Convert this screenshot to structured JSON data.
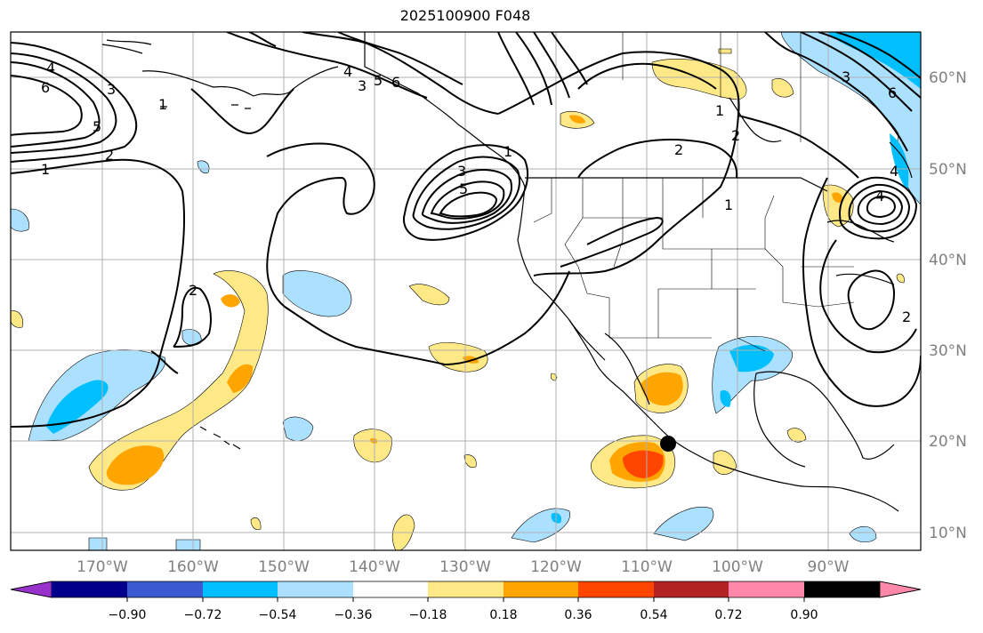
{
  "title": "2025100900 F048",
  "lon_ticks": [
    "170°W",
    "160°W",
    "150°W",
    "140°W",
    "130°W",
    "120°W",
    "110°W",
    "100°W",
    "90°W"
  ],
  "lat_ticks": [
    "60°N",
    "50°N",
    "40°N",
    "30°N",
    "20°N",
    "10°N"
  ],
  "colorbar": {
    "colors": [
      "#9932cc",
      "#00008b",
      "#3a5bcf",
      "#00bfff",
      "#abe0ff",
      "#ffffff",
      "#ffe987",
      "#ffa500",
      "#ff4500",
      "#b22222",
      "#ff88aa"
    ],
    "tick_labels": [
      "−0.90",
      "−0.72",
      "−0.54",
      "−0.36",
      "−0.18",
      "0.18",
      "0.36",
      "0.54",
      "0.72",
      "0.90"
    ]
  },
  "contour_labels": [
    "4",
    "6",
    "3",
    "5",
    "1",
    "2",
    "1",
    "2",
    "3",
    "4",
    "5",
    "6",
    "3",
    "5",
    "2",
    "1",
    "2",
    "1",
    "4",
    "3",
    "6",
    "4",
    "2",
    "1"
  ],
  "marker": {
    "name": "storm-position",
    "color": "#000000"
  }
}
